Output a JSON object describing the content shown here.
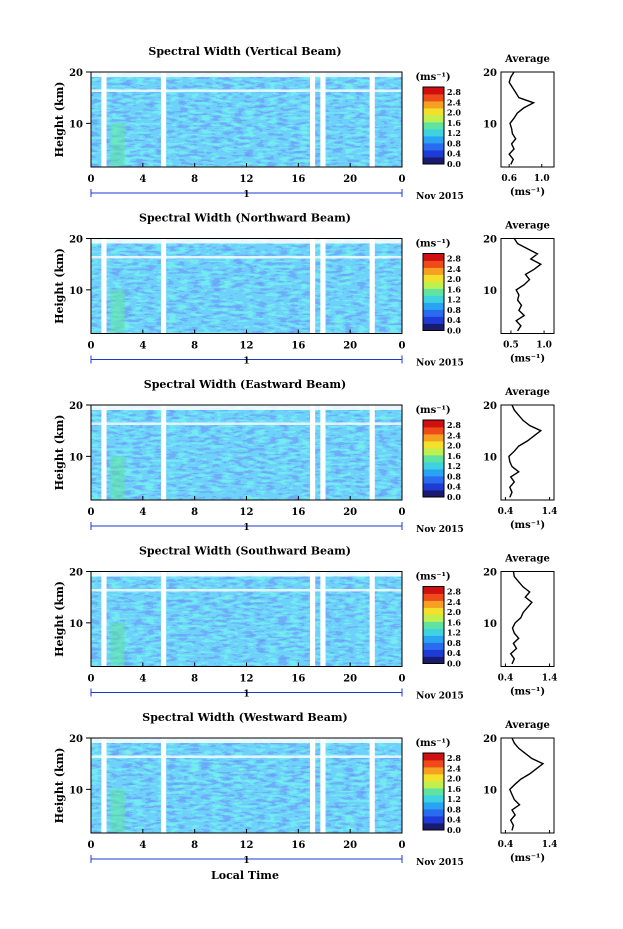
{
  "figure": {
    "xlabel": "Local Time",
    "time_ticks": [
      "0",
      "4",
      "8",
      "12",
      "16",
      "20",
      "0"
    ],
    "date_marker": "1",
    "date_label": "Nov 2015",
    "colorbar_unit": "(ms⁻¹)",
    "colorbar_ticks": [
      "0.0",
      "0.4",
      "0.8",
      "1.2",
      "1.6",
      "2.0",
      "2.4",
      "2.8"
    ],
    "colorbar_colors": [
      "#1a1a6e",
      "#1f3bd6",
      "#2a6cf0",
      "#29a4f2",
      "#3fd2e0",
      "#5fe3a0",
      "#bff050",
      "#f2e02a",
      "#f5a020",
      "#ef4a1a",
      "#d01010"
    ],
    "average_title": "Average",
    "average_xlabel": "(ms⁻¹)",
    "ylabel": "Height (km)",
    "height_ticks": [
      "20",
      "10"
    ]
  },
  "chart_data": [
    {
      "type": "heatmap",
      "title": "Spectral Width (Vertical Beam)",
      "x_range_hours": [
        0,
        24
      ],
      "y_range_km": [
        1.5,
        20
      ],
      "colorbar_range": [
        0.0,
        3.0
      ],
      "data_gaps_hours": [
        [
          0.8,
          1.2
        ],
        [
          5.4,
          5.8
        ],
        [
          16.9,
          17.3
        ],
        [
          17.7,
          18.1
        ],
        [
          21.5,
          21.9
        ]
      ],
      "average_profile": {
        "xticks": [
          "0.6",
          "1.0"
        ],
        "xlim": [
          0.5,
          1.15
        ],
        "height_km": [
          2,
          3,
          4,
          5,
          6,
          7,
          8,
          9,
          10,
          11,
          12,
          13,
          14,
          15,
          16,
          17,
          18,
          19,
          20
        ],
        "width_ms": [
          0.62,
          0.65,
          0.6,
          0.66,
          0.63,
          0.68,
          0.64,
          0.63,
          0.61,
          0.66,
          0.7,
          0.78,
          0.9,
          0.72,
          0.68,
          0.64,
          0.6,
          0.62,
          0.66
        ]
      }
    },
    {
      "type": "heatmap",
      "title": "Spectral Width (Northward Beam)",
      "x_range_hours": [
        0,
        24
      ],
      "y_range_km": [
        1.5,
        20
      ],
      "colorbar_range": [
        0.0,
        3.0
      ],
      "data_gaps_hours": [
        [
          0.8,
          1.2
        ],
        [
          5.4,
          5.8
        ],
        [
          16.9,
          17.3
        ],
        [
          17.7,
          18.1
        ],
        [
          21.5,
          21.9
        ]
      ],
      "average_profile": {
        "xticks": [
          "0.5",
          "1.0"
        ],
        "xlim": [
          0.35,
          1.15
        ],
        "height_km": [
          2,
          3,
          4,
          5,
          6,
          7,
          8,
          9,
          10,
          11,
          12,
          13,
          14,
          15,
          16,
          17,
          18,
          19,
          20
        ],
        "width_ms": [
          0.6,
          0.65,
          0.58,
          0.7,
          0.62,
          0.66,
          0.6,
          0.62,
          0.58,
          0.7,
          0.78,
          0.72,
          0.85,
          0.95,
          0.8,
          0.9,
          0.75,
          0.6,
          0.55
        ]
      }
    },
    {
      "type": "heatmap",
      "title": "Spectral Width (Eastward Beam)",
      "x_range_hours": [
        0,
        24
      ],
      "y_range_km": [
        1.5,
        20
      ],
      "colorbar_range": [
        0.0,
        3.0
      ],
      "data_gaps_hours": [
        [
          0.8,
          1.2
        ],
        [
          5.4,
          5.8
        ],
        [
          16.9,
          17.3
        ],
        [
          17.7,
          18.1
        ],
        [
          21.5,
          21.9
        ]
      ],
      "average_profile": {
        "xticks": [
          "0.4",
          "1.4"
        ],
        "xlim": [
          0.3,
          1.5
        ],
        "height_km": [
          2,
          3,
          4,
          5,
          6,
          7,
          8,
          9,
          10,
          11,
          12,
          13,
          14,
          15,
          16,
          17,
          18,
          19,
          20
        ],
        "width_ms": [
          0.5,
          0.55,
          0.5,
          0.6,
          0.52,
          0.7,
          0.55,
          0.5,
          0.48,
          0.6,
          0.7,
          0.9,
          1.05,
          1.2,
          0.95,
          0.8,
          0.7,
          0.6,
          0.55
        ]
      }
    },
    {
      "type": "heatmap",
      "title": "Spectral Width (Southward Beam)",
      "x_range_hours": [
        0,
        24
      ],
      "y_range_km": [
        1.5,
        20
      ],
      "colorbar_range": [
        0.0,
        3.0
      ],
      "data_gaps_hours": [
        [
          0.8,
          1.2
        ],
        [
          5.4,
          5.8
        ],
        [
          16.9,
          17.3
        ],
        [
          17.7,
          18.1
        ],
        [
          21.5,
          21.9
        ]
      ],
      "average_profile": {
        "xticks": [
          "0.4",
          "1.4"
        ],
        "xlim": [
          0.3,
          1.5
        ],
        "height_km": [
          2,
          3,
          4,
          5,
          6,
          7,
          8,
          9,
          10,
          11,
          12,
          13,
          14,
          15,
          16,
          17,
          18,
          19,
          20
        ],
        "width_ms": [
          0.55,
          0.6,
          0.52,
          0.65,
          0.58,
          0.7,
          0.6,
          0.56,
          0.62,
          0.75,
          0.8,
          0.9,
          1.0,
          0.85,
          0.95,
          0.8,
          0.7,
          0.6,
          0.58
        ]
      }
    },
    {
      "type": "heatmap",
      "title": "Spectral Width (Westward Beam)",
      "x_range_hours": [
        0,
        24
      ],
      "y_range_km": [
        1.5,
        20
      ],
      "colorbar_range": [
        0.0,
        3.0
      ],
      "data_gaps_hours": [
        [
          0.8,
          1.2
        ],
        [
          5.4,
          5.8
        ],
        [
          16.9,
          17.3
        ],
        [
          17.7,
          18.1
        ],
        [
          21.5,
          21.9
        ]
      ],
      "average_profile": {
        "xticks": [
          "0.4",
          "1.4"
        ],
        "xlim": [
          0.3,
          1.5
        ],
        "height_km": [
          2,
          3,
          4,
          5,
          6,
          7,
          8,
          9,
          10,
          11,
          12,
          13,
          14,
          15,
          16,
          17,
          18,
          19,
          20
        ],
        "width_ms": [
          0.55,
          0.58,
          0.52,
          0.62,
          0.55,
          0.72,
          0.6,
          0.55,
          0.5,
          0.62,
          0.75,
          0.95,
          1.1,
          1.25,
          1.0,
          0.85,
          0.7,
          0.6,
          0.55
        ]
      }
    }
  ]
}
